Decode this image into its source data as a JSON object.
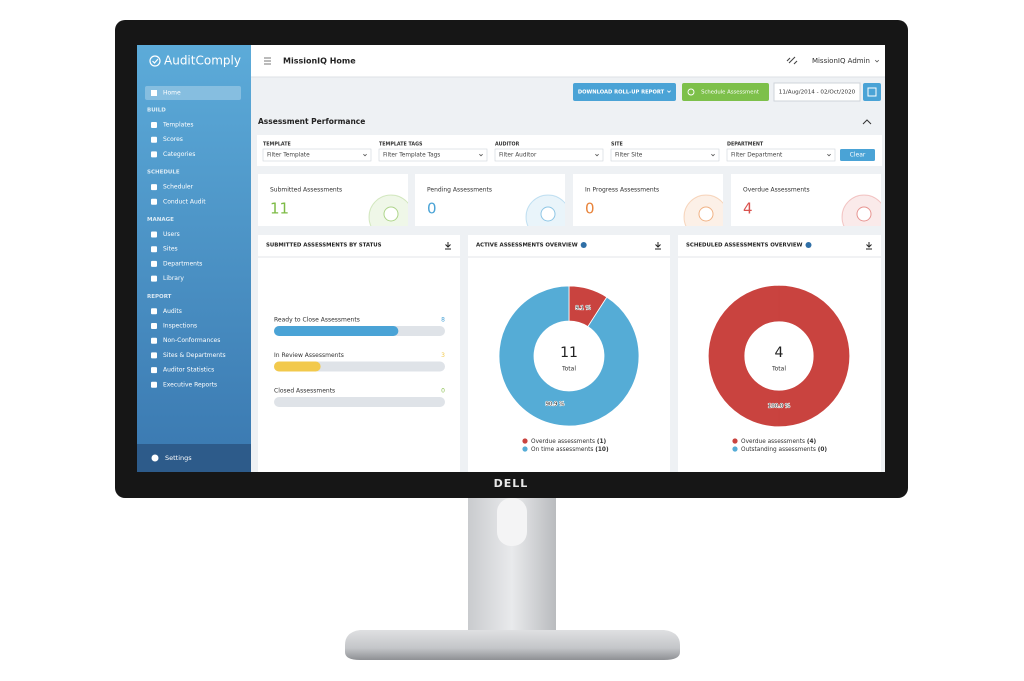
{
  "monitor_brand": "DELL",
  "app": {
    "brand": "AuditComply"
  },
  "sidebar": {
    "home": "Home",
    "sections": [
      {
        "title": "BUILD",
        "items": [
          "Templates",
          "Scores",
          "Categories"
        ]
      },
      {
        "title": "SCHEDULE",
        "items": [
          "Scheduler",
          "Conduct Audit"
        ]
      },
      {
        "title": "MANAGE",
        "items": [
          "Users",
          "Sites",
          "Departments",
          "Library"
        ]
      },
      {
        "title": "REPORT",
        "items": [
          "Audits",
          "Inspections",
          "Non-Conformances",
          "Sites & Departments",
          "Auditor Statistics",
          "Executive Reports"
        ]
      }
    ],
    "settings": "Settings"
  },
  "header": {
    "title": "MissionIQ Home",
    "user": "MissionIQ Admin"
  },
  "toolbar": {
    "download": "DOWNLOAD ROLL-UP REPORT",
    "schedule": "Schedule Assessment",
    "date_range": "11/Aug/2014 - 02/Oct/2020"
  },
  "panel": {
    "title": "Assessment Performance",
    "filters": [
      {
        "label": "TEMPLATE",
        "placeholder": "Filter Template"
      },
      {
        "label": "TEMPLATE TAGS",
        "placeholder": "Filter Template Tags"
      },
      {
        "label": "AUDITOR",
        "placeholder": "Filter Auditor"
      },
      {
        "label": "SITE",
        "placeholder": "Filter Site"
      },
      {
        "label": "DEPARTMENT",
        "placeholder": "Filter Department"
      }
    ],
    "clear": "Clear"
  },
  "stats": [
    {
      "label": "Submitted Assessments",
      "value": 11,
      "color": "#7dbb45"
    },
    {
      "label": "Pending Assessments",
      "value": 0,
      "color": "#4aa3d6"
    },
    {
      "label": "In Progress Assessments",
      "value": 0,
      "color": "#e8833a"
    },
    {
      "label": "Overdue Assessments",
      "value": 4,
      "color": "#d9534f"
    }
  ],
  "status_card": {
    "title": "SUBMITTED ASSESSMENTS BY STATUS",
    "rows": [
      {
        "label": "Ready to Close Assessments",
        "value": 8,
        "color": "#4aa3d6"
      },
      {
        "label": "In Review Assessments",
        "value": 3,
        "color": "#f2c94c"
      },
      {
        "label": "Closed Assessments",
        "value": 0,
        "color": "#8cc152"
      }
    ]
  },
  "donuts": [
    {
      "title": "ACTIVE ASSESSMENTS OVERVIEW",
      "total": 11,
      "total_label": "Total",
      "slices": [
        {
          "name": "Overdue assessments",
          "value": 1,
          "value_label": "(1)",
          "percent_label": "9.1 %",
          "color": "#c9433f"
        },
        {
          "name": "On time assessments",
          "value": 10,
          "value_label": "(10)",
          "percent_label": "90.9 %",
          "color": "#55acd6"
        }
      ]
    },
    {
      "title": "SCHEDULED ASSESSMENTS OVERVIEW",
      "total": 4,
      "total_label": "Total",
      "slices": [
        {
          "name": "Overdue assessments",
          "value": 4,
          "value_label": "(4)",
          "percent_label": "100.0 %",
          "color": "#c9433f"
        },
        {
          "name": "Outstanding assessments",
          "value": 0,
          "value_label": "(0)",
          "percent_label": null,
          "color": "#55acd6"
        }
      ]
    }
  ]
}
